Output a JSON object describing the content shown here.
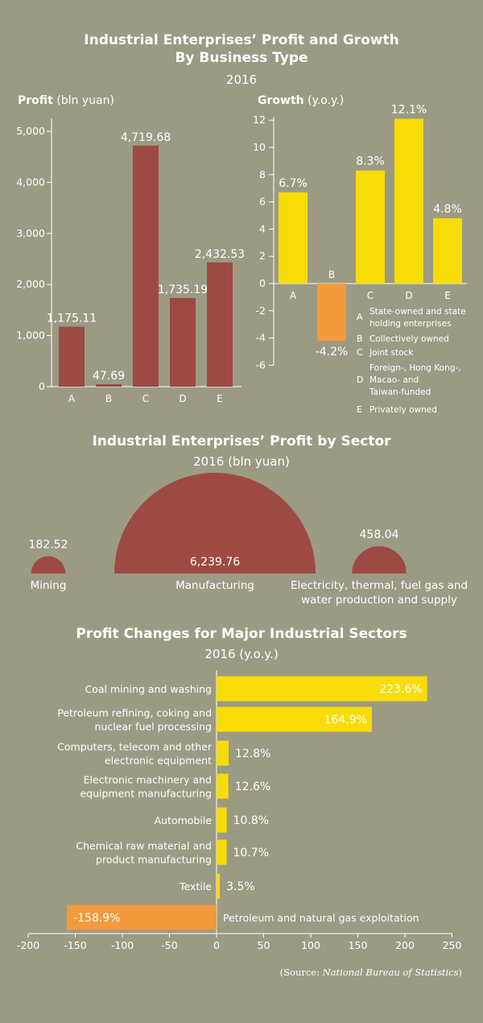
{
  "section1": {
    "title_line1": "Industrial Enterprises’ Profit and Growth",
    "title_line2": "By Business Type",
    "subtitle": "2016",
    "profit_head_bold": "Profit",
    "profit_head_unit": "(bln yuan)",
    "growth_head_bold": "Growth",
    "growth_head_unit": "(y.o.y.)"
  },
  "legend": [
    {
      "letter": "A",
      "lines": [
        "State-owned and state",
        "holding enterprises"
      ]
    },
    {
      "letter": "B",
      "lines": [
        "Collectively owned"
      ]
    },
    {
      "letter": "C",
      "lines": [
        "Joint stock"
      ]
    },
    {
      "letter": "D",
      "lines": [
        "Foreign-, Hong Kong-,",
        "Macao- and",
        "Taiwan-funded"
      ]
    },
    {
      "letter": "E",
      "lines": [
        "Privately owned"
      ]
    }
  ],
  "section2": {
    "title": "Industrial Enterprises’ Profit by Sector",
    "subtitle": "2016 (bln yuan)"
  },
  "section3": {
    "title": "Profit Changes for Major Industrial Sectors",
    "subtitle": "2016 (y.o.y.)"
  },
  "source": {
    "prefix": "(Source: ",
    "name": "National Bureau of Statistics",
    "suffix": ")"
  },
  "colors": {
    "background": "#9b9b84",
    "profit_bar": "#9e4a44",
    "growth_pos": "#f8dc05",
    "growth_neg": "#f39a3c",
    "text": "#ffffff"
  },
  "chart_data": [
    {
      "type": "bar",
      "name": "Profit",
      "categories": [
        "A",
        "B",
        "C",
        "D",
        "E"
      ],
      "values": [
        1175.11,
        47.69,
        4719.68,
        1735.19,
        2432.53
      ],
      "labels": [
        "1,175.11",
        "47.69",
        "4,719.68",
        "1,735.19",
        "2,432.53"
      ],
      "ylim": [
        0,
        5000
      ],
      "yticks": [
        0,
        1000,
        2000,
        3000,
        4000,
        5000
      ],
      "ytick_labels": [
        "0",
        "1,000",
        "2,000",
        "3,000",
        "4,000",
        "5,000"
      ],
      "ylabel": "Profit (bln yuan)"
    },
    {
      "type": "bar",
      "name": "Growth",
      "categories": [
        "A",
        "B",
        "C",
        "D",
        "E"
      ],
      "values": [
        6.7,
        -4.2,
        8.3,
        12.1,
        4.8
      ],
      "labels": [
        "6.7%",
        "-4.2%",
        "8.3%",
        "12.1%",
        "4.8%"
      ],
      "ylim": [
        -6,
        12
      ],
      "yticks": [
        -6,
        -4,
        -2,
        0,
        2,
        4,
        6,
        8,
        10,
        12
      ],
      "ylabel": "Growth (y.o.y.)"
    },
    {
      "type": "pie",
      "name": "Profit by sector",
      "categories": [
        "Mining",
        "Manufacturing",
        "Electricity, thermal, fuel gas and water production and supply"
      ],
      "label_lines": [
        [
          "Mining"
        ],
        [
          "Manufacturing"
        ],
        [
          "Electricity, thermal, fuel gas and",
          "water production and supply"
        ]
      ],
      "values": [
        182.52,
        6239.76,
        458.04
      ],
      "labels": [
        "182.52",
        "6,239.76",
        "458.04"
      ]
    },
    {
      "type": "bar",
      "orientation": "horizontal",
      "name": "Profit changes",
      "categories": [
        "Coal mining and washing",
        "Petroleum refining, coking and nuclear fuel processing",
        "Computers, telecom and other electronic equipment",
        "Electronic machinery and equipment manufacturing",
        "Automobile",
        "Chemical raw material and product manufacturing",
        "Textile",
        "Petroleum and natural gas exploitation"
      ],
      "category_lines": [
        [
          "Coal mining and washing"
        ],
        [
          "Petroleum refining, coking and",
          "nuclear fuel processing"
        ],
        [
          "Computers, telecom and other",
          "electronic equipment"
        ],
        [
          "Electronic machinery and",
          "equipment manufacturing"
        ],
        [
          "Automobile"
        ],
        [
          "Chemical raw material and",
          "product manufacturing"
        ],
        [
          "Textile"
        ],
        [
          "Petroleum and natural gas exploitation"
        ]
      ],
      "values": [
        223.6,
        164.9,
        12.8,
        12.6,
        10.8,
        10.7,
        3.5,
        -158.9
      ],
      "labels": [
        "223.6%",
        "164.9%",
        "12.8%",
        "12.6%",
        "10.8%",
        "10.7%",
        "3.5%",
        "-158.9%"
      ],
      "xlim": [
        -200,
        250
      ],
      "xticks": [
        -200,
        -150,
        -100,
        -50,
        0,
        50,
        100,
        150,
        200,
        250
      ]
    }
  ]
}
